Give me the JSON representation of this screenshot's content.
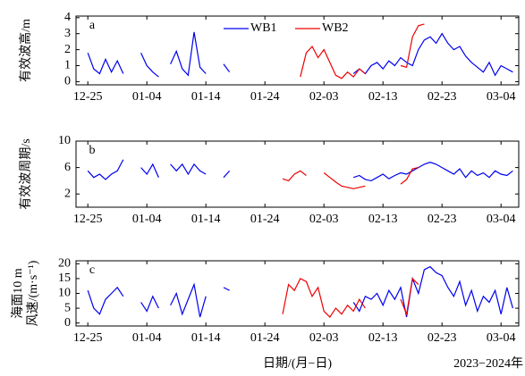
{
  "chart_data": [
    {
      "type": "line",
      "title": "a",
      "ylabel": [
        "有效波高/m"
      ],
      "ylim": [
        -0.2,
        4.1
      ],
      "yticks": [
        0,
        1,
        2,
        3,
        4
      ],
      "legend": "top",
      "x": [
        "12-23",
        "12-24",
        "12-25",
        "12-26",
        "12-27",
        "12-28",
        "12-29",
        "12-30",
        "12-31",
        "01-01",
        "01-02",
        "01-03",
        "01-04",
        "01-05",
        "01-06",
        "01-07",
        "01-08",
        "01-09",
        "01-10",
        "01-11",
        "01-12",
        "01-13",
        "01-14",
        "01-15",
        "01-16",
        "01-17",
        "01-18",
        "01-19",
        "01-20",
        "01-21",
        "01-22",
        "01-23",
        "01-24",
        "01-25",
        "01-26",
        "01-27",
        "01-28",
        "01-29",
        "01-30",
        "01-31",
        "02-01",
        "02-02",
        "02-03",
        "02-04",
        "02-05",
        "02-06",
        "02-07",
        "02-08",
        "02-09",
        "02-10",
        "02-11",
        "02-12",
        "02-13",
        "02-14",
        "02-15",
        "02-16",
        "02-17",
        "02-18",
        "02-19",
        "02-20",
        "02-21",
        "02-22",
        "02-23",
        "02-24",
        "02-25",
        "02-26",
        "02-27",
        "02-28",
        "02-29",
        "03-01",
        "03-02",
        "03-03",
        "03-04",
        "03-05",
        "03-06",
        "03-07"
      ],
      "xticks": [
        "12-25",
        "01-04",
        "01-14",
        "01-24",
        "02-03",
        "02-13",
        "02-23",
        "03-04"
      ],
      "series": [
        {
          "name": "WB1",
          "color": "#0000ee",
          "values": [
            null,
            null,
            1.8,
            0.8,
            0.5,
            1.4,
            0.6,
            1.3,
            0.5,
            null,
            null,
            1.8,
            1.0,
            0.6,
            0.3,
            null,
            1.1,
            1.9,
            0.8,
            0.4,
            3.1,
            0.9,
            0.5,
            null,
            null,
            1.1,
            0.6,
            null,
            null,
            null,
            null,
            null,
            null,
            null,
            null,
            null,
            null,
            null,
            null,
            null,
            null,
            null,
            null,
            null,
            null,
            null,
            null,
            0.5,
            0.8,
            0.5,
            1.0,
            1.2,
            0.8,
            1.3,
            1.0,
            1.5,
            1.2,
            1.0,
            2.0,
            2.6,
            2.8,
            2.4,
            3.0,
            2.4,
            2.0,
            2.2,
            1.6,
            1.2,
            0.9,
            0.6,
            1.2,
            0.4,
            1.0,
            0.8,
            0.6,
            null
          ]
        },
        {
          "name": "WB2",
          "color": "#ee0000",
          "values": [
            null,
            null,
            null,
            null,
            null,
            null,
            null,
            null,
            null,
            null,
            null,
            null,
            null,
            null,
            null,
            null,
            null,
            null,
            null,
            null,
            null,
            null,
            null,
            null,
            null,
            null,
            null,
            null,
            null,
            null,
            null,
            null,
            null,
            null,
            null,
            null,
            null,
            null,
            0.3,
            1.8,
            2.2,
            1.5,
            2.0,
            1.2,
            0.4,
            0.2,
            0.6,
            0.3,
            0.8,
            0.5,
            null,
            null,
            null,
            null,
            null,
            1.0,
            0.9,
            2.8,
            3.5,
            3.6,
            null,
            null,
            null,
            null,
            null,
            null,
            null,
            null,
            null,
            null,
            null,
            null,
            null,
            null,
            null,
            null
          ]
        }
      ]
    },
    {
      "type": "line",
      "title": "b",
      "ylabel": [
        "有效波周期/s"
      ],
      "ylim": [
        0,
        10
      ],
      "yticks": [
        2,
        6,
        10
      ],
      "x": [
        "12-23",
        "12-24",
        "12-25",
        "12-26",
        "12-27",
        "12-28",
        "12-29",
        "12-30",
        "12-31",
        "01-01",
        "01-02",
        "01-03",
        "01-04",
        "01-05",
        "01-06",
        "01-07",
        "01-08",
        "01-09",
        "01-10",
        "01-11",
        "01-12",
        "01-13",
        "01-14",
        "01-15",
        "01-16",
        "01-17",
        "01-18",
        "01-19",
        "01-20",
        "01-21",
        "01-22",
        "01-23",
        "01-24",
        "01-25",
        "01-26",
        "01-27",
        "01-28",
        "01-29",
        "01-30",
        "01-31",
        "02-01",
        "02-02",
        "02-03",
        "02-04",
        "02-05",
        "02-06",
        "02-07",
        "02-08",
        "02-09",
        "02-10",
        "02-11",
        "02-12",
        "02-13",
        "02-14",
        "02-15",
        "02-16",
        "02-17",
        "02-18",
        "02-19",
        "02-20",
        "02-21",
        "02-22",
        "02-23",
        "02-24",
        "02-25",
        "02-26",
        "02-27",
        "02-28",
        "02-29",
        "03-01",
        "03-02",
        "03-03",
        "03-04",
        "03-05",
        "03-06",
        "03-07"
      ],
      "xticks": [
        "12-25",
        "01-04",
        "01-14",
        "01-24",
        "02-03",
        "02-13",
        "02-23",
        "03-04"
      ],
      "series": [
        {
          "color": "#0000ee",
          "values": [
            null,
            null,
            5.5,
            4.5,
            5.0,
            4.2,
            5.0,
            5.5,
            7.2,
            null,
            null,
            6.0,
            5.0,
            6.5,
            4.5,
            null,
            6.5,
            5.5,
            6.5,
            5.0,
            6.5,
            5.5,
            5.0,
            null,
            null,
            4.5,
            5.5,
            null,
            null,
            null,
            null,
            null,
            null,
            null,
            null,
            null,
            null,
            null,
            null,
            null,
            null,
            null,
            null,
            null,
            null,
            null,
            null,
            4.5,
            4.8,
            4.2,
            4.0,
            4.5,
            5.0,
            4.3,
            4.8,
            5.2,
            5.0,
            5.5,
            6.0,
            6.5,
            6.8,
            6.5,
            6.0,
            5.5,
            5.0,
            5.8,
            4.5,
            5.5,
            4.8,
            5.2,
            4.5,
            5.5,
            5.0,
            4.8,
            5.5,
            null
          ]
        },
        {
          "color": "#ee0000",
          "values": [
            null,
            null,
            null,
            null,
            null,
            null,
            null,
            null,
            null,
            null,
            null,
            null,
            null,
            null,
            null,
            null,
            null,
            null,
            null,
            null,
            null,
            null,
            null,
            null,
            null,
            null,
            null,
            null,
            null,
            null,
            null,
            null,
            null,
            null,
            null,
            4.3,
            4.0,
            5.0,
            5.5,
            4.8,
            null,
            null,
            5.2,
            4.5,
            3.8,
            3.2,
            3.0,
            2.8,
            3.0,
            3.2,
            null,
            null,
            null,
            null,
            null,
            3.5,
            4.2,
            5.8,
            6.0,
            null,
            null,
            null,
            null,
            null,
            null,
            null,
            null,
            null,
            null,
            null,
            null,
            null,
            null,
            null,
            null,
            null
          ]
        }
      ]
    },
    {
      "type": "line",
      "title": "c",
      "ylabel": [
        "海面10 m",
        "风速/(m·s⁻¹)"
      ],
      "ylim": [
        -1,
        21
      ],
      "yticks": [
        0,
        5,
        10,
        15,
        20
      ],
      "xlabel": "日期/(月−日)",
      "note": "2023−2024年",
      "x": [
        "12-23",
        "12-24",
        "12-25",
        "12-26",
        "12-27",
        "12-28",
        "12-29",
        "12-30",
        "12-31",
        "01-01",
        "01-02",
        "01-03",
        "01-04",
        "01-05",
        "01-06",
        "01-07",
        "01-08",
        "01-09",
        "01-10",
        "01-11",
        "01-12",
        "01-13",
        "01-14",
        "01-15",
        "01-16",
        "01-17",
        "01-18",
        "01-19",
        "01-20",
        "01-21",
        "01-22",
        "01-23",
        "01-24",
        "01-25",
        "01-26",
        "01-27",
        "01-28",
        "01-29",
        "01-30",
        "01-31",
        "02-01",
        "02-02",
        "02-03",
        "02-04",
        "02-05",
        "02-06",
        "02-07",
        "02-08",
        "02-09",
        "02-10",
        "02-11",
        "02-12",
        "02-13",
        "02-14",
        "02-15",
        "02-16",
        "02-17",
        "02-18",
        "02-19",
        "02-20",
        "02-21",
        "02-22",
        "02-23",
        "02-24",
        "02-25",
        "02-26",
        "02-27",
        "02-28",
        "02-29",
        "03-01",
        "03-02",
        "03-03",
        "03-04",
        "03-05",
        "03-06",
        "03-07"
      ],
      "xticks": [
        "12-25",
        "01-04",
        "01-14",
        "01-24",
        "02-03",
        "02-13",
        "02-23",
        "03-04"
      ],
      "series": [
        {
          "color": "#0000ee",
          "values": [
            null,
            null,
            11,
            5,
            3,
            8,
            10,
            12,
            9,
            null,
            null,
            7,
            4,
            9,
            5,
            null,
            6,
            10,
            3,
            8,
            13,
            2,
            9,
            null,
            null,
            12,
            11,
            null,
            null,
            null,
            null,
            null,
            null,
            null,
            null,
            null,
            null,
            null,
            null,
            null,
            null,
            null,
            null,
            null,
            null,
            null,
            null,
            7,
            4,
            9,
            8,
            10,
            6,
            11,
            8,
            12,
            2,
            15,
            10,
            18,
            19,
            17,
            16,
            12,
            9,
            14,
            6,
            11,
            4,
            9,
            7,
            11,
            3,
            12,
            5,
            null
          ]
        },
        {
          "color": "#ee0000",
          "values": [
            null,
            null,
            null,
            null,
            null,
            null,
            null,
            null,
            null,
            null,
            null,
            null,
            null,
            null,
            null,
            null,
            null,
            null,
            null,
            null,
            null,
            null,
            null,
            null,
            null,
            null,
            null,
            null,
            null,
            null,
            null,
            null,
            null,
            null,
            null,
            3,
            13,
            11,
            15,
            14,
            9,
            12,
            4,
            2,
            5,
            3,
            6,
            4,
            8,
            5,
            null,
            null,
            null,
            null,
            null,
            8,
            3,
            15,
            13,
            null,
            null,
            null,
            null,
            null,
            null,
            null,
            null,
            null,
            null,
            null,
            null,
            null,
            null,
            null,
            null,
            null
          ]
        }
      ]
    }
  ]
}
